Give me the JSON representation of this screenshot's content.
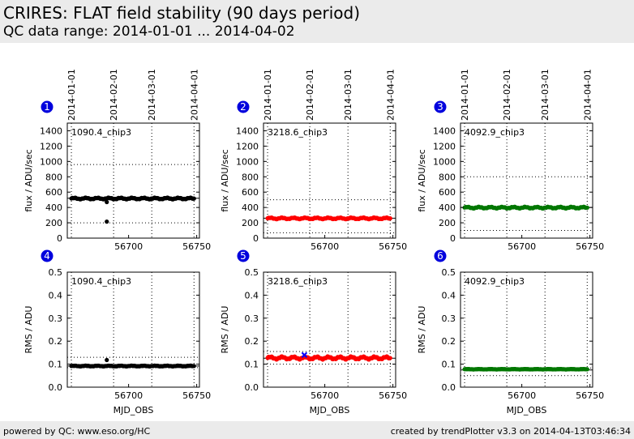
{
  "header": {
    "title": "CRIRES: FLAT field stability (90 days period)",
    "subtitle": "QC data range: 2014-01-01 ... 2014-04-02"
  },
  "footer": {
    "left": "powered by QC: www.eso.org/HC",
    "right": "created by trendPlotter v3.3 on 2014-04-13T03:46:34"
  },
  "colors": {
    "header_bg": "#ebebeb",
    "badge": "#0000dd",
    "chip_series": [
      "#000000",
      "#ff0000",
      "#007700"
    ],
    "outlier_marker": "#0000ff"
  },
  "chart_data": [
    {
      "panel": "1",
      "type": "scatter",
      "label": "1090.4_chip3",
      "ylabel": "flux / ADU/sec",
      "xlabel": "",
      "color": "#000000",
      "xlim": [
        56655,
        56752
      ],
      "ylim": [
        0,
        1500
      ],
      "xticks": [
        56700,
        56750
      ],
      "yticks": [
        0,
        200,
        400,
        600,
        800,
        1000,
        1200,
        1400
      ],
      "date_ticks": [
        {
          "mjd": 56658,
          "label": "2014-01-01"
        },
        {
          "mjd": 56689,
          "label": "2014-02-01"
        },
        {
          "mjd": 56717,
          "label": "2014-03-01"
        },
        {
          "mjd": 56748,
          "label": "2014-04-01"
        }
      ],
      "ref_line": 520,
      "band": [
        200,
        960
      ],
      "series_start": 56658,
      "series_end": 56748,
      "base": 517,
      "noise": 10,
      "extra_points": [
        {
          "x": 56684,
          "y": 215
        },
        {
          "x": 56684,
          "y": 470
        }
      ]
    },
    {
      "panel": "2",
      "type": "scatter",
      "label": "3218.6_chip3",
      "ylabel": "flux / ADU/sec",
      "xlabel": "",
      "color": "#ff0000",
      "xlim": [
        56655,
        56752
      ],
      "ylim": [
        0,
        1500
      ],
      "xticks": [
        56700,
        56750
      ],
      "yticks": [
        0,
        200,
        400,
        600,
        800,
        1000,
        1200,
        1400
      ],
      "date_ticks": [
        {
          "mjd": 56658,
          "label": "2014-01-01"
        },
        {
          "mjd": 56689,
          "label": "2014-02-01"
        },
        {
          "mjd": 56717,
          "label": "2014-03-01"
        },
        {
          "mjd": 56748,
          "label": "2014-04-01"
        }
      ],
      "ref_line": 260,
      "band": [
        70,
        500
      ],
      "series_start": 56658,
      "series_end": 56748,
      "base": 258,
      "noise": 10,
      "extra_points": []
    },
    {
      "panel": "3",
      "type": "scatter",
      "label": "4092.9_chip3",
      "ylabel": "flux / ADU/sec",
      "xlabel": "",
      "color": "#007700",
      "xlim": [
        56655,
        56752
      ],
      "ylim": [
        0,
        1500
      ],
      "xticks": [
        56700,
        56750
      ],
      "yticks": [
        0,
        200,
        400,
        600,
        800,
        1000,
        1200,
        1400
      ],
      "date_ticks": [
        {
          "mjd": 56658,
          "label": "2014-01-01"
        },
        {
          "mjd": 56689,
          "label": "2014-02-01"
        },
        {
          "mjd": 56717,
          "label": "2014-03-01"
        },
        {
          "mjd": 56748,
          "label": "2014-04-01"
        }
      ],
      "ref_line": 400,
      "band": [
        100,
        800
      ],
      "series_start": 56658,
      "series_end": 56748,
      "base": 398,
      "noise": 10,
      "extra_points": []
    },
    {
      "panel": "4",
      "type": "scatter",
      "label": "1090.4_chip3",
      "ylabel": "RMS / ADU",
      "xlabel": "MJD_OBS",
      "color": "#000000",
      "xlim": [
        56655,
        56752
      ],
      "ylim": [
        0,
        0.5
      ],
      "xticks": [
        56700,
        56750
      ],
      "yticks": [
        0.0,
        0.1,
        0.2,
        0.3,
        0.4,
        0.5
      ],
      "date_ticks": [
        {
          "mjd": 56658,
          "label": "2014-01-01"
        },
        {
          "mjd": 56689,
          "label": "2014-02-01"
        },
        {
          "mjd": 56717,
          "label": "2014-03-01"
        },
        {
          "mjd": 56748,
          "label": "2014-04-01"
        }
      ],
      "ref_line": 0.092,
      "band": [
        0.085,
        0.13
      ],
      "series_start": 56658,
      "series_end": 56748,
      "base": 0.092,
      "noise": 0.0015,
      "extra_points": [
        {
          "x": 56684,
          "y": 0.118
        }
      ]
    },
    {
      "panel": "5",
      "type": "scatter",
      "label": "3218.6_chip3",
      "ylabel": "RMS / ADU",
      "xlabel": "MJD_OBS",
      "color": "#ff0000",
      "xlim": [
        56655,
        56752
      ],
      "ylim": [
        0,
        0.5
      ],
      "xticks": [
        56700,
        56750
      ],
      "yticks": [
        0.0,
        0.1,
        0.2,
        0.3,
        0.4,
        0.5
      ],
      "date_ticks": [
        {
          "mjd": 56658,
          "label": "2014-01-01"
        },
        {
          "mjd": 56689,
          "label": "2014-02-01"
        },
        {
          "mjd": 56717,
          "label": "2014-03-01"
        },
        {
          "mjd": 56748,
          "label": "2014-04-01"
        }
      ],
      "ref_line": 0.126,
      "band": [
        0.1,
        0.155
      ],
      "series_start": 56658,
      "series_end": 56748,
      "base": 0.127,
      "noise": 0.006,
      "extra_points": [],
      "outliers": [
        {
          "x": 56685,
          "y": 0.14
        }
      ]
    },
    {
      "panel": "6",
      "type": "scatter",
      "label": "4092.9_chip3",
      "ylabel": "RMS / ADU",
      "xlabel": "MJD_OBS",
      "color": "#007700",
      "xlim": [
        56655,
        56752
      ],
      "ylim": [
        0,
        0.5
      ],
      "xticks": [
        56700,
        56750
      ],
      "yticks": [
        0.0,
        0.1,
        0.2,
        0.3,
        0.4,
        0.5
      ],
      "date_ticks": [
        {
          "mjd": 56658,
          "label": "2014-01-01"
        },
        {
          "mjd": 56689,
          "label": "2014-02-01"
        },
        {
          "mjd": 56717,
          "label": "2014-03-01"
        },
        {
          "mjd": 56748,
          "label": "2014-04-01"
        }
      ],
      "ref_line": 0.075,
      "band": [
        0.05,
        0.083
      ],
      "series_start": 56658,
      "series_end": 56748,
      "base": 0.078,
      "noise": 0.0008,
      "extra_points": []
    }
  ]
}
